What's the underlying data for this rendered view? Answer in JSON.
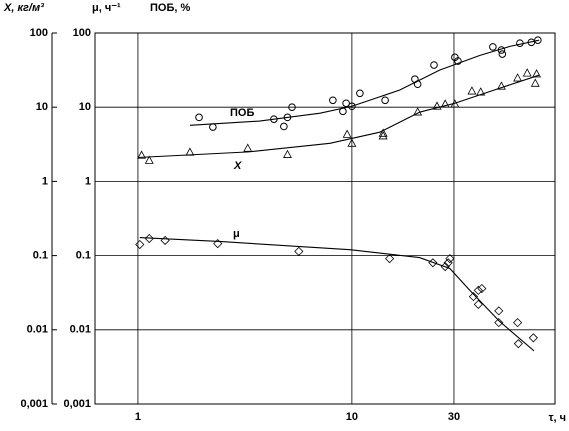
{
  "chart_data": {
    "type": "scatter",
    "header": [
      "X, кг/м³",
      "μ, ч⁻¹",
      "ПОБ, %"
    ],
    "xlabel": "τ, ч",
    "log_x": true,
    "log_y": true,
    "grid": true,
    "xlim": [
      0.63,
      89
    ],
    "xticks": [
      1,
      10,
      30
    ],
    "ylim": [
      0.001,
      100
    ],
    "yticks": [
      {
        "value": 0.001,
        "label": "0,001"
      },
      0.01,
      0.1,
      1,
      10,
      100
    ],
    "y2lim": [
      0.001,
      100
    ],
    "y2ticks": [
      {
        "value": 0.001,
        "label": "0,001"
      },
      0.01,
      0.1,
      1,
      10,
      100
    ],
    "series": [
      {
        "name": "ПОБ",
        "marker": "circle",
        "color": "#000",
        "axis": "y2",
        "x": [
          1.93,
          2.24,
          4.32,
          4.81,
          5.0,
          5.25,
          8.15,
          9.08,
          9.4,
          10,
          10.9,
          14.3,
          19.7,
          20.3,
          24.2,
          30.3,
          31.3,
          45.6,
          50,
          50.5,
          61,
          69,
          74
        ],
        "values": [
          7.3,
          5.4,
          6.9,
          5.5,
          7.3,
          10,
          12.4,
          8.8,
          11.3,
          10.3,
          15.4,
          12.4,
          23.9,
          20.4,
          37,
          47,
          41.9,
          65,
          59,
          52,
          73,
          75,
          80
        ],
        "fit_x": [
          1.75,
          3.7,
          7.1,
          10,
          16.7,
          25.7,
          39.7,
          54.8,
          75
        ],
        "fit_values": [
          5.7,
          6.5,
          8.3,
          10.3,
          17,
          31.6,
          50,
          66,
          80
        ]
      },
      {
        "name": "X",
        "marker": "triangle",
        "color": "#000",
        "axis": "y",
        "x": [
          1.04,
          1.13,
          1.75,
          3.26,
          5.0,
          9.5,
          10,
          14,
          14,
          20.3,
          25,
          27.3,
          30.3,
          36.4,
          40,
          50,
          59.5,
          66,
          73,
          72
        ],
        "values": [
          2.25,
          1.92,
          2.47,
          2.79,
          2.3,
          4.3,
          3.26,
          4.45,
          4.1,
          8.6,
          10.3,
          11,
          11,
          16.5,
          16,
          19.2,
          24.7,
          28.8,
          28,
          21
        ],
        "fit_x": [
          1,
          3.3,
          7.9,
          13.5,
          20.8,
          30.3,
          49,
          75
        ],
        "fit_values": [
          2.1,
          2.5,
          3.26,
          4.6,
          8.6,
          11.3,
          18,
          27
        ]
      },
      {
        "name": "μ",
        "marker": "diamond",
        "color": "#000",
        "axis": "y2",
        "x": [
          1.02,
          1.13,
          1.34,
          2.36,
          5.65,
          15,
          23.9,
          27.3,
          28.2,
          28.7,
          37,
          39,
          39,
          40.5,
          48.6,
          48.6,
          59.5,
          60,
          70.5
        ],
        "values": [
          0.141,
          0.17,
          0.16,
          0.145,
          0.114,
          0.091,
          0.08,
          0.071,
          0.08,
          0.091,
          0.028,
          0.034,
          0.022,
          0.036,
          0.018,
          0.0125,
          0.0125,
          0.0065,
          0.0078
        ],
        "fit_x": [
          1.02,
          2.4,
          9.8,
          20.7,
          28.7,
          35.6,
          49,
          71
        ],
        "fit_values": [
          0.175,
          0.155,
          0.12,
          0.094,
          0.067,
          0.034,
          0.013,
          0.0052
        ]
      }
    ]
  }
}
